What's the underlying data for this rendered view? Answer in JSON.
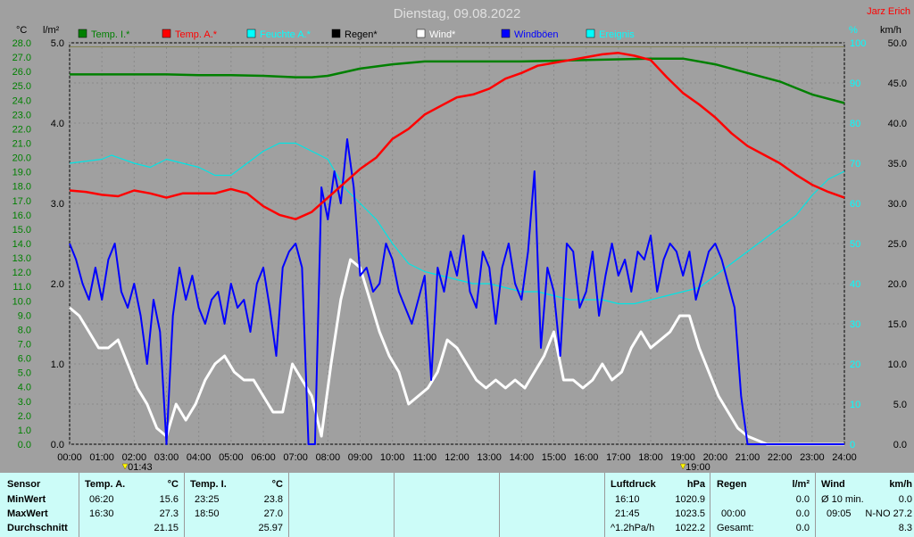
{
  "title": "Dienstag, 09.08.2022",
  "author": "Jarz Erich",
  "axis": {
    "temp_unit": "°C",
    "rain_unit": "l/m²",
    "humidity_unit": "%",
    "wind_unit": "km/h",
    "temp_ticks": [
      "28.0",
      "27.0",
      "26.0",
      "25.0",
      "24.0",
      "23.0",
      "22.0",
      "21.0",
      "20.0",
      "19.0",
      "18.0",
      "17.0",
      "16.0",
      "15.0",
      "14.0",
      "13.0",
      "12.0",
      "11.0",
      "10.0",
      "9.0",
      "8.0",
      "7.0",
      "6.0",
      "5.0",
      "4.0",
      "3.0",
      "2.0",
      "1.0",
      "0.0"
    ],
    "rain_ticks": [
      "5.0",
      "4.0",
      "3.0",
      "2.0",
      "1.0",
      "0.0"
    ],
    "humidity_ticks": [
      "100",
      "90",
      "80",
      "70",
      "60",
      "50",
      "40",
      "30",
      "20",
      "10",
      "0"
    ],
    "wind_ticks": [
      "50.0",
      "45.0",
      "40.0",
      "35.0",
      "30.0",
      "25.0",
      "20.0",
      "15.0",
      "10.0",
      "5.0",
      "0.0"
    ],
    "time_ticks": [
      "00:00",
      "01:00",
      "02:00",
      "03:00",
      "04:00",
      "05:00",
      "06:00",
      "07:00",
      "08:00",
      "09:00",
      "10:00",
      "11:00",
      "12:00",
      "13:00",
      "14:00",
      "15:00",
      "16:00",
      "17:00",
      "18:00",
      "19:00",
      "20:00",
      "21:00",
      "22:00",
      "23:00",
      "24:00"
    ],
    "sunrise": "01:43",
    "sunset": "19:00"
  },
  "legend": [
    {
      "label": "Temp. I.*",
      "color": "#008000"
    },
    {
      "label": "Temp. A.*",
      "color": "#ff0000"
    },
    {
      "label": "Feuchte A.*",
      "color": "#00ffff"
    },
    {
      "label": "Regen*",
      "color": "#000000"
    },
    {
      "label": "Wind*",
      "color": "#ffffff"
    },
    {
      "label": "Windböen",
      "color": "#0000ff"
    },
    {
      "label": "Ereignis",
      "color": "#00ffff"
    }
  ],
  "colors": {
    "temp_axis": "#008000",
    "rain_axis": "#000000",
    "humidity_axis": "#00ffff",
    "wind_axis": "#000000",
    "temp_in": "#008000",
    "temp_out": "#ff0000",
    "humidity": "#00e5e5",
    "wind": "#ffffff",
    "gusts": "#0000ff",
    "event": "#808050"
  },
  "chart_data": {
    "type": "line",
    "x_range": [
      0,
      24
    ],
    "y_temp_range": [
      0,
      28
    ],
    "y_rain_range": [
      0,
      5
    ],
    "y_humidity_range": [
      0,
      100
    ],
    "y_wind_range": [
      0,
      50
    ],
    "series": [
      {
        "name": "Temp. I.*",
        "axis": "temp",
        "x": [
          0,
          1,
          2,
          3,
          4,
          5,
          6,
          7,
          7.5,
          8,
          9,
          10,
          11,
          12,
          13,
          14,
          15,
          16,
          17,
          18,
          19,
          20,
          21,
          22,
          23,
          24
        ],
        "values": [
          25.8,
          25.8,
          25.8,
          25.8,
          25.75,
          25.75,
          25.7,
          25.6,
          25.6,
          25.7,
          26.2,
          26.5,
          26.7,
          26.7,
          26.7,
          26.7,
          26.75,
          26.8,
          26.85,
          26.9,
          26.9,
          26.5,
          25.9,
          25.3,
          24.4,
          23.8
        ]
      },
      {
        "name": "Temp. A.*",
        "axis": "temp",
        "x": [
          0,
          0.5,
          1,
          1.5,
          2,
          2.5,
          3,
          3.5,
          4,
          4.5,
          5,
          5.5,
          6,
          6.5,
          7,
          7.5,
          8,
          8.5,
          9,
          9.5,
          10,
          10.5,
          11,
          11.5,
          12,
          12.5,
          13,
          13.5,
          14,
          14.5,
          15,
          15.5,
          16,
          16.5,
          17,
          17.5,
          18,
          18.5,
          19,
          19.5,
          20,
          20.5,
          21,
          21.5,
          22,
          22.5,
          23,
          23.5,
          24
        ],
        "values": [
          17.7,
          17.6,
          17.4,
          17.3,
          17.7,
          17.5,
          17.2,
          17.5,
          17.5,
          17.5,
          17.8,
          17.5,
          16.6,
          16.0,
          15.7,
          16.2,
          17.2,
          18.2,
          19.2,
          20.0,
          21.3,
          22.0,
          23.0,
          23.6,
          24.2,
          24.4,
          24.8,
          25.5,
          25.9,
          26.4,
          26.6,
          26.8,
          27.0,
          27.2,
          27.3,
          27.1,
          26.8,
          25.6,
          24.5,
          23.7,
          22.8,
          21.7,
          20.8,
          20.2,
          19.6,
          18.8,
          18.1,
          17.6,
          17.2
        ]
      },
      {
        "name": "Feuchte A.*",
        "axis": "humidity",
        "x": [
          0,
          1,
          1.3,
          2,
          2.5,
          3,
          3.5,
          4,
          4.5,
          5,
          5.5,
          6,
          6.5,
          7,
          7.5,
          8,
          8.5,
          9,
          9.5,
          10,
          10.5,
          11,
          11.5,
          12,
          12.5,
          13,
          13.5,
          14,
          14.5,
          15,
          15.5,
          16,
          16.5,
          17,
          17.5,
          18,
          18.5,
          19,
          19.5,
          20,
          20.5,
          21,
          21.5,
          22,
          22.5,
          23,
          23.5,
          24
        ],
        "values": [
          70,
          71,
          72,
          70,
          69,
          71,
          70,
          69,
          67,
          67,
          70,
          73,
          75,
          75,
          73,
          71,
          64,
          60,
          56,
          50,
          45,
          43,
          42,
          41,
          40,
          40,
          39,
          38,
          38,
          37,
          36,
          36,
          36,
          35,
          35,
          36,
          37,
          38,
          39,
          42,
          45,
          48,
          51,
          54,
          57,
          62,
          66,
          68
        ]
      },
      {
        "name": "Wind*",
        "axis": "wind",
        "x": [
          0,
          0.3,
          0.6,
          0.9,
          1.2,
          1.5,
          1.8,
          2.1,
          2.4,
          2.7,
          3.0,
          3.3,
          3.6,
          3.9,
          4.2,
          4.5,
          4.8,
          5.1,
          5.4,
          5.7,
          6.0,
          6.3,
          6.6,
          6.9,
          7.2,
          7.5,
          7.8,
          8.1,
          8.4,
          8.7,
          9.0,
          9.3,
          9.6,
          9.9,
          10.2,
          10.5,
          10.8,
          11.1,
          11.4,
          11.7,
          12.0,
          12.3,
          12.6,
          12.9,
          13.2,
          13.5,
          13.8,
          14.1,
          14.4,
          14.7,
          15.0,
          15.3,
          15.6,
          15.9,
          16.2,
          16.5,
          16.8,
          17.1,
          17.4,
          17.7,
          18.0,
          18.3,
          18.6,
          18.9,
          19.2,
          19.5,
          19.8,
          20.1,
          20.4,
          20.7,
          21.0,
          21.3,
          21.6,
          21.9,
          22.2,
          22.5,
          22.8,
          23.1,
          23.4,
          23.7,
          24.0
        ],
        "values": [
          17,
          16,
          14,
          12,
          12,
          13,
          10,
          7,
          5,
          2,
          1,
          5,
          3,
          5,
          8,
          10,
          11,
          9,
          8,
          8,
          6,
          4,
          4,
          10,
          8,
          6,
          1,
          10,
          18,
          23,
          22,
          18,
          14,
          11,
          9,
          5,
          6,
          7,
          9,
          13,
          12,
          10,
          8,
          7,
          8,
          7,
          8,
          7,
          9,
          11,
          14,
          8,
          8,
          7,
          8,
          10,
          8,
          9,
          12,
          14,
          12,
          13,
          14,
          16,
          16,
          12,
          9,
          6,
          4,
          2,
          1,
          0.5,
          0,
          0,
          0,
          0,
          0,
          0,
          0,
          0,
          0
        ]
      },
      {
        "name": "Windböen",
        "axis": "wind",
        "x": [
          0,
          0.2,
          0.4,
          0.6,
          0.8,
          1.0,
          1.2,
          1.4,
          1.6,
          1.8,
          2.0,
          2.2,
          2.4,
          2.6,
          2.8,
          3.0,
          3.2,
          3.4,
          3.6,
          3.8,
          4.0,
          4.2,
          4.4,
          4.6,
          4.8,
          5.0,
          5.2,
          5.4,
          5.6,
          5.8,
          6.0,
          6.2,
          6.4,
          6.6,
          6.8,
          7.0,
          7.2,
          7.4,
          7.6,
          7.8,
          8.0,
          8.2,
          8.4,
          8.6,
          8.8,
          9.0,
          9.2,
          9.4,
          9.6,
          9.8,
          10.0,
          10.2,
          10.4,
          10.6,
          10.8,
          11.0,
          11.2,
          11.4,
          11.6,
          11.8,
          12.0,
          12.2,
          12.4,
          12.6,
          12.8,
          13.0,
          13.2,
          13.4,
          13.6,
          13.8,
          14.0,
          14.2,
          14.4,
          14.6,
          14.8,
          15.0,
          15.2,
          15.4,
          15.6,
          15.8,
          16.0,
          16.2,
          16.4,
          16.6,
          16.8,
          17.0,
          17.2,
          17.4,
          17.6,
          17.8,
          18.0,
          18.2,
          18.4,
          18.6,
          18.8,
          19.0,
          19.2,
          19.4,
          19.6,
          19.8,
          20.0,
          20.2,
          20.4,
          20.6,
          20.8,
          21.0,
          21.2,
          21.4,
          21.6,
          21.8,
          22.0,
          22.2,
          22.4,
          22.6,
          22.8,
          23.0,
          23.2,
          23.4,
          23.6,
          23.8,
          24.0
        ],
        "values": [
          25,
          23,
          20,
          18,
          22,
          18,
          23,
          25,
          19,
          17,
          20,
          16,
          10,
          18,
          14,
          0,
          16,
          22,
          18,
          21,
          17,
          15,
          18,
          19,
          15,
          20,
          17,
          18,
          14,
          20,
          22,
          17,
          11,
          22,
          24,
          25,
          22,
          0,
          0,
          32,
          28,
          34,
          30,
          38,
          32,
          21,
          22,
          19,
          20,
          25,
          23,
          19,
          17,
          15,
          18,
          21,
          8,
          22,
          19,
          24,
          21,
          26,
          19,
          17,
          24,
          22,
          15,
          22,
          25,
          20,
          18,
          24,
          34,
          12,
          22,
          19,
          11,
          25,
          24,
          17,
          19,
          24,
          16,
          21,
          25,
          21,
          23,
          19,
          24,
          23,
          26,
          19,
          23,
          25,
          24,
          21,
          24,
          18,
          21,
          24,
          25,
          23,
          20,
          17,
          6,
          0,
          0,
          0,
          0,
          0,
          0,
          0,
          0,
          0,
          0,
          0,
          0,
          0,
          0,
          0,
          0
        ],
        "peaks_note": "gust series"
      },
      {
        "name": "Ereignis",
        "axis": "humidity",
        "x": [
          0,
          24
        ],
        "values": [
          99,
          99
        ]
      }
    ]
  },
  "footer": {
    "sensor": {
      "header": "Sensor",
      "rows": [
        "MinWert",
        "MaxWert",
        "Durchschnitt"
      ]
    },
    "temp_a": {
      "header": "Temp. A.",
      "unit": "°C",
      "rows": [
        [
          "06:20",
          "15.6"
        ],
        [
          "16:30",
          "27.3"
        ],
        [
          "",
          "21.15"
        ]
      ]
    },
    "temp_i": {
      "header": "Temp. I.",
      "unit": "°C",
      "rows": [
        [
          "23:25",
          "23.8"
        ],
        [
          "18:50",
          "27.0"
        ],
        [
          "",
          "25.97"
        ]
      ]
    },
    "pressure": {
      "header": "Luftdruck",
      "unit": "hPa",
      "rows": [
        [
          "16:10",
          "1020.9"
        ],
        [
          "21:45",
          "1023.5"
        ],
        [
          "^1.2hPa/h",
          "1022.2"
        ]
      ]
    },
    "rain": {
      "header": "Regen",
      "unit": "l/m²",
      "rows": [
        [
          "",
          "0.0"
        ],
        [
          "00:00",
          "0.0"
        ],
        [
          "Gesamt:",
          "0.0"
        ]
      ]
    },
    "wind": {
      "header": "Wind",
      "unit": "km/h",
      "rows": [
        [
          "Ø 10 min.",
          "0.0"
        ],
        [
          "09:05",
          "N-NO 27.2"
        ],
        [
          "",
          "8.3"
        ]
      ]
    }
  }
}
